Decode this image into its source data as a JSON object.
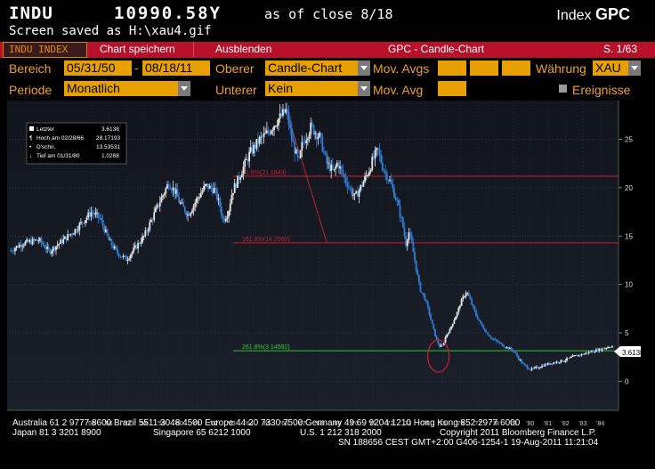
{
  "header": {
    "ticker": "INDU",
    "price": "10990.58Y",
    "as_of": "as of close  8/18",
    "index_label": "Index",
    "index_code": "GPC",
    "saved_msg": "Screen saved as H:\\xau4.gif"
  },
  "tabs": {
    "indu_index": "INDU INDEX",
    "chart_save": "Chart speichern",
    "hide": "Ausblenden",
    "title": "GPC - Candle-Chart",
    "page": "S. 1/63"
  },
  "controls": {
    "bereich_label": "Bereich",
    "start_date": "05/31/50",
    "end_date": "08/18/11",
    "oberer_label": "Oberer",
    "oberer_value": "Candle-Chart",
    "mov_avgs_label": "Mov. Avgs",
    "waehrung_label": "Währung",
    "waehrung_value": "XAU",
    "periode_label": "Periode",
    "periode_value": "Monatlich",
    "unterer_label": "Unterer",
    "unterer_value": "Kein",
    "mov_avg_label": "Mov. Avg",
    "ereignisse_label": "Ereignisse"
  },
  "legend": {
    "letzter_label": "Letzter",
    "letzter_value": "3.6138",
    "hoch_label": "Hoch am 02/28/66",
    "hoch_value": "28.17193",
    "dschn_label": "D'schn.",
    "dschn_value": "13.53531",
    "tief_label": "Tief am 01/31/80",
    "tief_value": "1.0268"
  },
  "chart_data": {
    "type": "candlestick",
    "x_tick_labels": [
      "'55",
      "'56",
      "'57",
      "'58",
      "'59",
      "'60",
      "'61",
      "'62",
      "'63",
      "'64",
      "'65",
      "'66",
      "'67",
      "'68",
      "'69",
      "'70",
      "'71",
      "'72",
      "'73",
      "'74",
      "'75",
      "'76",
      "'77",
      "'78",
      "'79",
      "'80",
      "'81",
      "'82",
      "'83",
      "'84"
    ],
    "y_tick_labels": [
      "0",
      "5",
      "10",
      "15",
      "20",
      "25"
    ],
    "ylim": [
      -3,
      29
    ],
    "last_value_label": "3.6138",
    "fib_levels": [
      {
        "label": "61.8%(21.1843)",
        "value": 21.18,
        "color": "#c81e32"
      },
      {
        "label": "161.8%(14.2960)",
        "value": 14.3,
        "color": "#c81e32"
      },
      {
        "label": "261.8%(3.14592)",
        "value": 3.15,
        "color": "#2ec82e"
      }
    ],
    "close_path": [
      [
        1950.4,
        13.5
      ],
      [
        1951,
        14.2
      ],
      [
        1952,
        14.6
      ],
      [
        1952.6,
        13.4
      ],
      [
        1953,
        14.0
      ],
      [
        1954,
        15.5
      ],
      [
        1955,
        17.5
      ],
      [
        1955.5,
        16.8
      ],
      [
        1956,
        14.5
      ],
      [
        1956.5,
        13.2
      ],
      [
        1957,
        12.6
      ],
      [
        1957.5,
        13.8
      ],
      [
        1958,
        15.0
      ],
      [
        1958.5,
        17.0
      ],
      [
        1959,
        19.0
      ],
      [
        1959.4,
        20.5
      ],
      [
        1959.8,
        19.5
      ],
      [
        1960,
        18.5
      ],
      [
        1960.5,
        17.2
      ],
      [
        1961,
        18.8
      ],
      [
        1961.5,
        20.2
      ],
      [
        1962,
        19.8
      ],
      [
        1962.3,
        18.2
      ],
      [
        1962.5,
        16.6
      ],
      [
        1962.8,
        17.6
      ],
      [
        1963,
        19.5
      ],
      [
        1963.5,
        21.5
      ],
      [
        1964,
        23.5
      ],
      [
        1964.5,
        24.8
      ],
      [
        1965,
        25.6
      ],
      [
        1965.5,
        26.8
      ],
      [
        1966.1,
        28.0
      ],
      [
        1966.4,
        25.0
      ],
      [
        1966.8,
        22.5
      ],
      [
        1967,
        24.5
      ],
      [
        1967.5,
        26.3
      ],
      [
        1968,
        25.2
      ],
      [
        1968.4,
        22.5
      ],
      [
        1968.8,
        21.6
      ],
      [
        1969,
        22.6
      ],
      [
        1969.4,
        21.0
      ],
      [
        1969.8,
        19.6
      ],
      [
        1970,
        19.0
      ],
      [
        1970.4,
        20.3
      ],
      [
        1970.8,
        21.8
      ],
      [
        1971,
        22.8
      ],
      [
        1971.3,
        23.9
      ],
      [
        1971.6,
        22.0
      ],
      [
        1972,
        20.6
      ],
      [
        1972.4,
        18.5
      ],
      [
        1972.7,
        16.3
      ],
      [
        1972.9,
        14.2
      ],
      [
        1973.05,
        15.5
      ],
      [
        1973.2,
        14.5
      ],
      [
        1973.5,
        11.5
      ],
      [
        1973.7,
        9.5
      ],
      [
        1974,
        8.5
      ],
      [
        1974.3,
        6.5
      ],
      [
        1974.6,
        4.5
      ],
      [
        1974.8,
        3.6
      ],
      [
        1975,
        3.7
      ],
      [
        1975.2,
        4.8
      ],
      [
        1975.4,
        5.3
      ],
      [
        1975.6,
        6.2
      ],
      [
        1975.8,
        7.0
      ],
      [
        1976,
        8.0
      ],
      [
        1976.2,
        8.8
      ],
      [
        1976.35,
        9.3
      ],
      [
        1976.6,
        8.2
      ],
      [
        1976.9,
        6.8
      ],
      [
        1977.2,
        5.8
      ],
      [
        1977.5,
        5.0
      ],
      [
        1977.8,
        4.4
      ],
      [
        1978,
        4.2
      ],
      [
        1978.5,
        3.6
      ],
      [
        1979,
        3.2
      ],
      [
        1979.3,
        2.4
      ],
      [
        1979.6,
        1.7
      ],
      [
        1980,
        1.2
      ],
      [
        1980.5,
        1.5
      ],
      [
        1981,
        1.8
      ],
      [
        1981.5,
        2.0
      ],
      [
        1982,
        2.2
      ],
      [
        1982.5,
        2.6
      ],
      [
        1983,
        2.8
      ],
      [
        1983.5,
        3.1
      ],
      [
        1984,
        3.3
      ],
      [
        1984.5,
        3.6
      ]
    ]
  },
  "footer": {
    "line1": "Australia 61 2 9777 8600 Brazil 5511 3048 4500 Europe 44 20 7330 7500 Germany 49 69 9204 1210 Hong Kong 852 2977 6000",
    "line2a": "Japan 81 3 3201 8900",
    "line2b": "Singapore 65 6212 1000",
    "line2c": "U.S. 1 212 318 2000",
    "line2d": "Copyright 2011 Bloomberg Finance L.P.",
    "line3": "SN 188656 CEST GMT+2:00 G406-1254-1 19-Aug-2011 11:21:04"
  }
}
